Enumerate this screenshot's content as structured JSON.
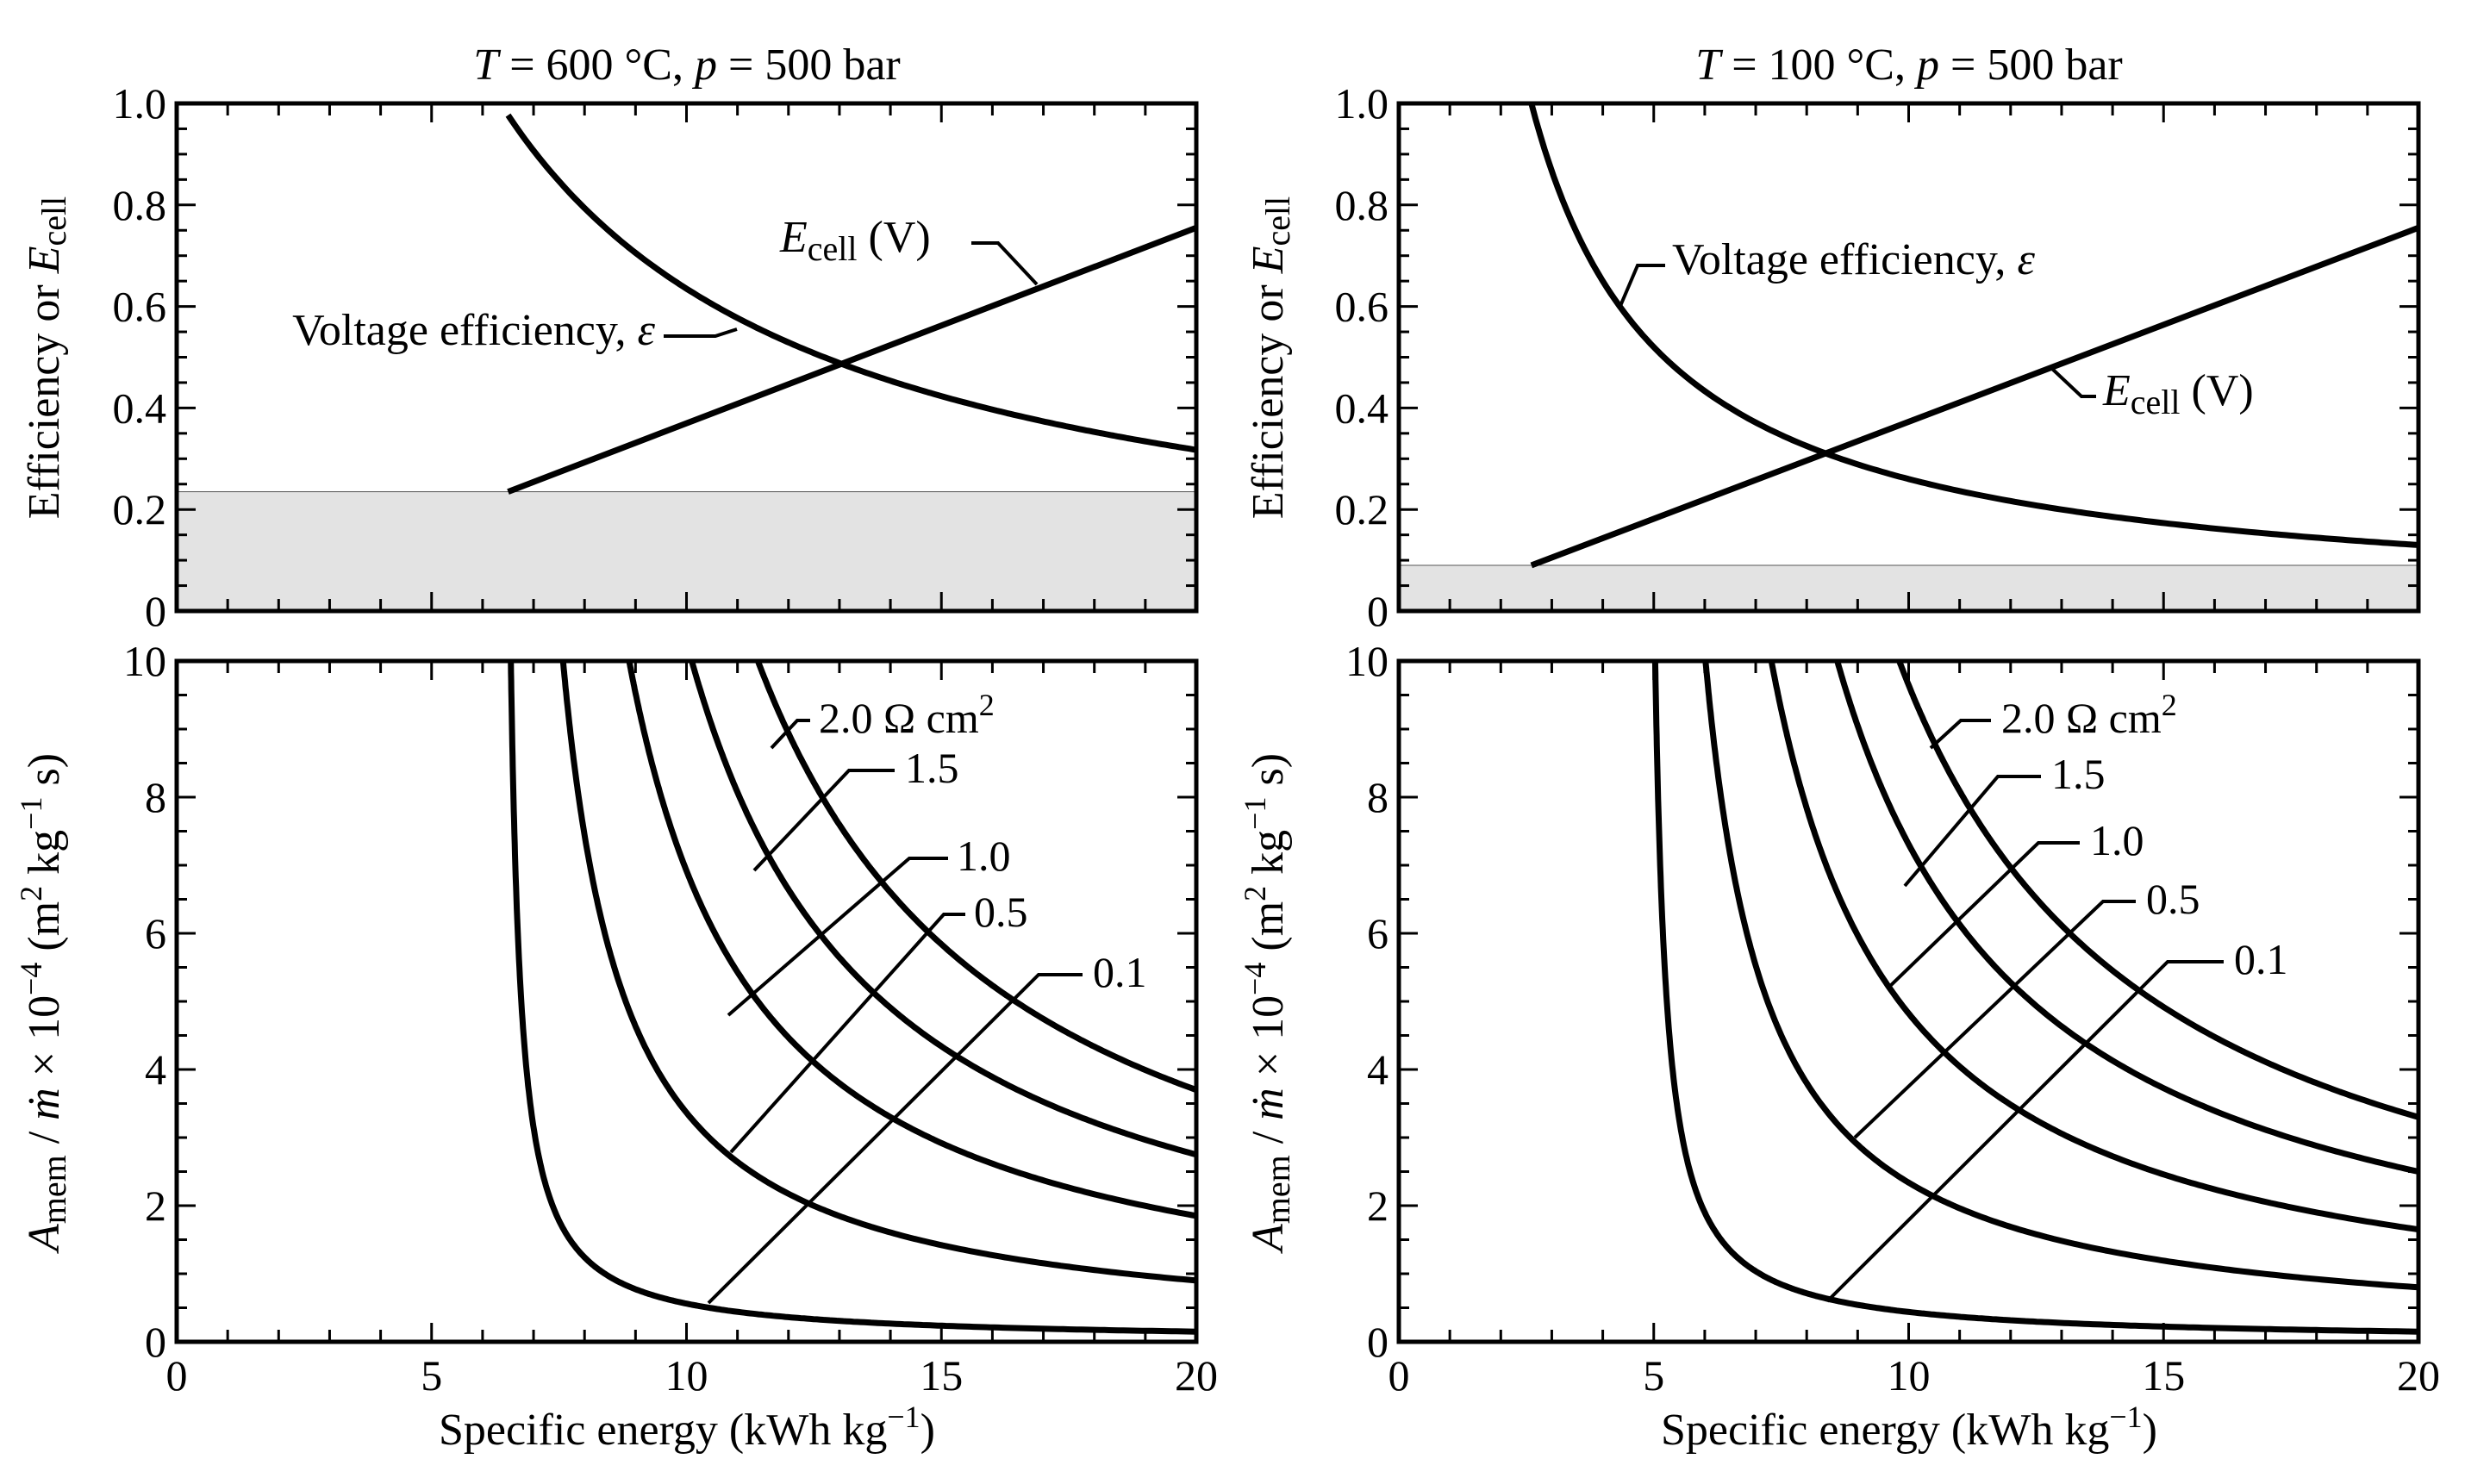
{
  "figure": {
    "left_column_title": {
      "T": "T",
      "t_value": " = 600 °C, ",
      "p": "p",
      "p_value": " = 500 bar"
    },
    "right_column_title": {
      "T": "T",
      "t_value": " = 100 °C, ",
      "p": "p",
      "p_value": " = 500 bar"
    },
    "top_ylabel": {
      "prefix": "Efficiency or ",
      "E": "E",
      "sub": "cell"
    },
    "bottom_ylabel": {
      "A": "A",
      "sub": "mem",
      "middle": " / ",
      "mdot": "ṁ",
      "times": " × 10",
      "exp": "−4",
      "units_a": " (m",
      "sq": "2",
      "units_b": " kg",
      "neg1": "−1",
      "units_c": " s)"
    },
    "xlabel": {
      "main": "Specific energy (kWh kg",
      "exp": "−1",
      "close": ")"
    },
    "colors": {
      "curve": "#000000",
      "shade": "#e3e3e3",
      "frame": "#000000"
    }
  },
  "chart_data": [
    {
      "type": "line",
      "panel": "top-left",
      "title": "T = 600 °C, p = 500 bar",
      "xlabel": "",
      "ylabel": "Efficiency or Ecell",
      "xlim": [
        0,
        20
      ],
      "ylim": [
        0,
        1.0
      ],
      "y_ticks": [
        "0",
        "0.2",
        "0.4",
        "0.6",
        "0.8",
        "1.0"
      ],
      "y_tick_values": [
        0,
        0.2,
        0.4,
        0.6,
        0.8,
        1.0
      ],
      "shaded_band": {
        "from": 0,
        "to": 0.235
      },
      "series": [
        {
          "name": "Voltage efficiency, ε",
          "kind": "efficiency",
          "a": 6.35,
          "x_start": 6.5,
          "x_end": 20
        },
        {
          "name": "Ecell (V)",
          "kind": "ecell",
          "x": [
            6.5,
            20
          ],
          "y": [
            0.235,
            0.755
          ]
        }
      ],
      "labels": [
        {
          "id": "eff",
          "text": "Voltage efficiency, ",
          "sym": "ε"
        },
        {
          "id": "ecell",
          "text_E": "E",
          "text_sub": "cell",
          "text_units": " (V)"
        }
      ]
    },
    {
      "type": "line",
      "panel": "top-right",
      "title": "T = 100 °C, p = 500 bar",
      "xlabel": "",
      "ylabel": "Efficiency or Ecell",
      "xlim": [
        0,
        20
      ],
      "ylim": [
        0,
        1.0
      ],
      "y_ticks": [
        "0",
        "0.2",
        "0.4",
        "0.6",
        "0.8",
        "1.0"
      ],
      "y_tick_values": [
        0,
        0.2,
        0.4,
        0.6,
        0.8,
        1.0
      ],
      "shaded_band": {
        "from": 0,
        "to": 0.09
      },
      "series": [
        {
          "name": "Voltage efficiency, ε",
          "kind": "efficiency",
          "a": 2.6,
          "x_start": 2.6,
          "x_end": 20
        },
        {
          "name": "Ecell (V)",
          "kind": "ecell",
          "x": [
            2.6,
            20
          ],
          "y": [
            0.09,
            0.755
          ]
        }
      ],
      "labels": [
        {
          "id": "eff",
          "text": "Voltage efficiency, ",
          "sym": "ε"
        },
        {
          "id": "ecell",
          "text_E": "E",
          "text_sub": "cell",
          "text_units": " (V)"
        }
      ]
    },
    {
      "type": "line",
      "panel": "bottom-left",
      "title": "",
      "xlabel": "Specific energy (kWh kg−1)",
      "ylabel": "Amem / ṁ × 10−4 (m2 kg−1 s)",
      "xlim": [
        0,
        20
      ],
      "ylim": [
        0,
        10
      ],
      "x_ticks": [
        "0",
        "5",
        "10",
        "15",
        "20"
      ],
      "x_tick_values": [
        0,
        5,
        10,
        15,
        20
      ],
      "y_ticks": [
        "0",
        "2",
        "4",
        "6",
        "8",
        "10"
      ],
      "y_tick_values": [
        0,
        2,
        4,
        6,
        8,
        10
      ],
      "series": [
        {
          "name": "0.1",
          "a": 6.35,
          "k": 2.2,
          "x_end": 20,
          "y_end": 0.15
        },
        {
          "name": "0.5",
          "a": 6.35,
          "k": 10.8,
          "x_end": 20,
          "y_end": 0.9
        },
        {
          "name": "1.0",
          "a": 6.35,
          "k": 21.6,
          "x_end": 20,
          "y_end": 1.85
        },
        {
          "name": "1.5",
          "a": 6.35,
          "k": 32.5,
          "x_end": 20,
          "y_end": 2.75
        },
        {
          "name": "2.0 Ω cm2",
          "a": 6.35,
          "k": 43.3,
          "x_end": 20,
          "y_end": 3.7
        }
      ],
      "labels": [
        {
          "text": "2.0 Ω cm",
          "sup": "2"
        },
        {
          "text": "1.5"
        },
        {
          "text": "1.0"
        },
        {
          "text": "0.5"
        },
        {
          "text": "0.1"
        }
      ]
    },
    {
      "type": "line",
      "panel": "bottom-right",
      "title": "",
      "xlabel": "Specific energy (kWh kg−1)",
      "ylabel": "Amem / ṁ × 10−4 (m2 kg−1 s)",
      "xlim": [
        0,
        20
      ],
      "ylim": [
        0,
        10
      ],
      "x_ticks": [
        "0",
        "5",
        "10",
        "15",
        "20"
      ],
      "x_tick_values": [
        0,
        5,
        10,
        15,
        20
      ],
      "y_ticks": [
        "0",
        "2",
        "4",
        "6",
        "8",
        "10"
      ],
      "y_tick_values": [
        0,
        2,
        4,
        6,
        8,
        10
      ],
      "series": [
        {
          "name": "0.1",
          "a": 4.8,
          "k": 2.2,
          "x_end": 20,
          "y_end": 0.15
        },
        {
          "name": "0.5",
          "a": 4.8,
          "k": 10.8,
          "x_end": 20,
          "y_end": 0.8
        },
        {
          "name": "1.0",
          "a": 4.8,
          "k": 21.6,
          "x_end": 20,
          "y_end": 1.65
        },
        {
          "name": "1.5",
          "a": 4.8,
          "k": 32.5,
          "x_end": 20,
          "y_end": 2.5
        },
        {
          "name": "2.0 Ω cm2",
          "a": 4.8,
          "k": 43.3,
          "x_end": 20,
          "y_end": 3.3
        }
      ],
      "labels": [
        {
          "text": "2.0 Ω cm",
          "sup": "2"
        },
        {
          "text": "1.5"
        },
        {
          "text": "1.0"
        },
        {
          "text": "0.5"
        },
        {
          "text": "0.1"
        }
      ]
    }
  ]
}
